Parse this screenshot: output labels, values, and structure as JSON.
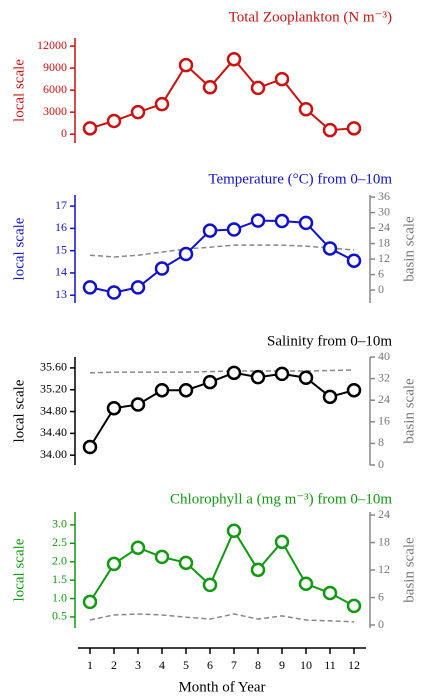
{
  "chart_data": [
    {
      "type": "line",
      "title": "Total Zooplankton (N m⁻³)",
      "ylabel": "local scale",
      "color": "#cc1111",
      "x": [
        1,
        2,
        3,
        4,
        5,
        6,
        7,
        8,
        9,
        10,
        11,
        12
      ],
      "values": [
        800,
        1800,
        3000,
        4100,
        9400,
        6400,
        10200,
        6300,
        7500,
        3400,
        550,
        800
      ],
      "ylim": [
        -1200,
        13100
      ],
      "yticks": [
        0,
        3000,
        6000,
        9000,
        12000
      ]
    },
    {
      "type": "line",
      "title": "Temperature (°C) from 0–10m",
      "ylabel": "local scale",
      "y2label": "basin scale",
      "color": "#1111cc",
      "x": [
        1,
        2,
        3,
        4,
        5,
        6,
        7,
        8,
        9,
        10,
        11,
        12
      ],
      "series": [
        {
          "color": "#1111cc",
          "values": [
            13.35,
            13.12,
            13.35,
            14.2,
            14.85,
            15.9,
            15.95,
            16.35,
            16.33,
            16.25,
            15.1,
            14.55
          ]
        },
        {
          "color": "#888888",
          "axis": "y2",
          "dashed": true,
          "values": [
            13.5,
            12.8,
            13.5,
            14.7,
            15.9,
            16.6,
            17.4,
            17.4,
            17.4,
            17.0,
            16.3,
            15.5
          ]
        }
      ],
      "ylim": [
        12.65,
        17.5
      ],
      "yticks": [
        13,
        14,
        15,
        16,
        17
      ],
      "y2lim": [
        -5,
        36.8
      ],
      "y2ticks": [
        0,
        6,
        12,
        18,
        24,
        30,
        36
      ]
    },
    {
      "type": "line",
      "title": "Salinity from 0–10m",
      "ylabel": "local scale",
      "y2label": "basin scale",
      "color": "#000000",
      "x": [
        1,
        2,
        3,
        4,
        5,
        6,
        7,
        8,
        9,
        10,
        11,
        12
      ],
      "series": [
        {
          "color": "#000000",
          "values": [
            34.15,
            34.86,
            34.93,
            35.19,
            35.19,
            35.34,
            35.51,
            35.43,
            35.49,
            35.42,
            35.07,
            35.19
          ]
        },
        {
          "color": "#888888",
          "axis": "y2",
          "dashed": true,
          "values": [
            34.1,
            34.4,
            34.4,
            34.4,
            34.4,
            34.6,
            34.8,
            34.8,
            34.8,
            34.8,
            35.0,
            35.2
          ]
        }
      ],
      "ylim": [
        33.82,
        35.8
      ],
      "yticks": [
        {
          "value": 34.0,
          "label": "34.00"
        },
        {
          "value": 34.4,
          "label": "34.40"
        },
        {
          "value": 34.8,
          "label": "34.80"
        },
        {
          "value": 35.2,
          "label": "35.20"
        },
        {
          "value": 35.6,
          "label": "35.60"
        }
      ],
      "y2lim": [
        0,
        40
      ],
      "y2ticks": [
        0,
        8,
        16,
        24,
        32,
        40
      ]
    },
    {
      "type": "line",
      "title": "Chlorophyll a (mg m⁻³) from 0–10m",
      "ylabel": "local scale",
      "y2label": "basin scale",
      "color": "#119911",
      "x": [
        1,
        2,
        3,
        4,
        5,
        6,
        7,
        8,
        9,
        10,
        11,
        12
      ],
      "series": [
        {
          "color": "#119911",
          "values": [
            0.91,
            1.94,
            2.38,
            2.13,
            1.97,
            1.37,
            2.84,
            1.78,
            2.54,
            1.4,
            1.15,
            0.8
          ]
        },
        {
          "color": "#888888",
          "axis": "y2",
          "dashed": true,
          "values": [
            1.1,
            2.2,
            2.4,
            2.2,
            1.7,
            1.3,
            2.4,
            1.3,
            2.0,
            1.1,
            0.9,
            0.7
          ]
        }
      ],
      "ylim": [
        0.2,
        3.35
      ],
      "yticks": [
        {
          "value": 0.5,
          "label": "0.5"
        },
        {
          "value": 1,
          "label": "1.0"
        },
        1.5,
        {
          "value": 2,
          "label": "2.0"
        },
        2.5,
        {
          "value": 3,
          "label": "3.0"
        }
      ],
      "y2lim": [
        -0.65,
        24.67
      ],
      "y2ticks": [
        0,
        6,
        12,
        18,
        24
      ],
      "xlabel": "Month of Year",
      "xlim": [
        0.5,
        12.5
      ],
      "xticks": [
        1,
        2,
        3,
        4,
        5,
        6,
        7,
        8,
        9,
        10,
        11,
        12
      ]
    }
  ]
}
